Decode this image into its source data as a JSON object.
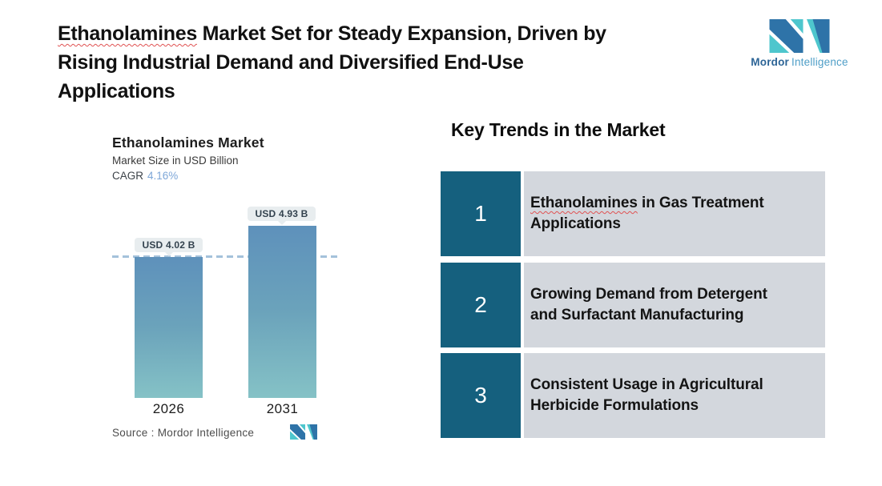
{
  "title": {
    "misspelled_word": "Ethanolamines",
    "line1_rest": " Market Set for Steady Expansion, Driven by",
    "line2": "Rising Industrial Demand and Diversified End-Use",
    "line3": "Applications"
  },
  "brand": {
    "name_bold": "Mordor",
    "name_light": "Intelligence",
    "colors": {
      "teal": "#4ec6cd",
      "blue": "#2e73a8"
    }
  },
  "chart": {
    "title": "Ethanolamines Market",
    "subtitle": "Market Size in USD Billion",
    "cagr_label": "CAGR",
    "cagr_value": "4.16%",
    "source": "Source : Mordor Intelligence"
  },
  "chart_data": {
    "type": "bar",
    "title": "Ethanolamines Market",
    "subtitle": "Market Size in USD Billion",
    "cagr": "4.16%",
    "categories": [
      "2026",
      "2031"
    ],
    "values": [
      4.02,
      4.93
    ],
    "value_labels": [
      "USD 4.02 B",
      "USD 4.93 B"
    ],
    "unit": "USD Billion",
    "ylim": [
      0,
      5.5
    ],
    "reference_line_at": 4.02,
    "grid": false,
    "legend": "none",
    "bar_gradient_top": "#5e91bb",
    "bar_gradient_bottom": "#85c2c6",
    "reference_line_color": "#a4c2db",
    "source": "Mordor Intelligence"
  },
  "key_trends": {
    "heading": "Key Trends in the Market",
    "number_box_color": "#15607e",
    "row_bg_color": "#d3d7dd",
    "items": [
      {
        "number": "1",
        "line1_word": "Ethanolamines",
        "line1_rest": " in Gas Treatment",
        "line2": "Applications"
      },
      {
        "number": "2",
        "line1_word": "",
        "line1_rest": "Growing Demand from Detergent",
        "line2": "and Surfactant Manufacturing"
      },
      {
        "number": "3",
        "line1_word": "",
        "line1_rest": "Consistent Usage in Agricultural",
        "line2": "Herbicide Formulations"
      }
    ]
  }
}
